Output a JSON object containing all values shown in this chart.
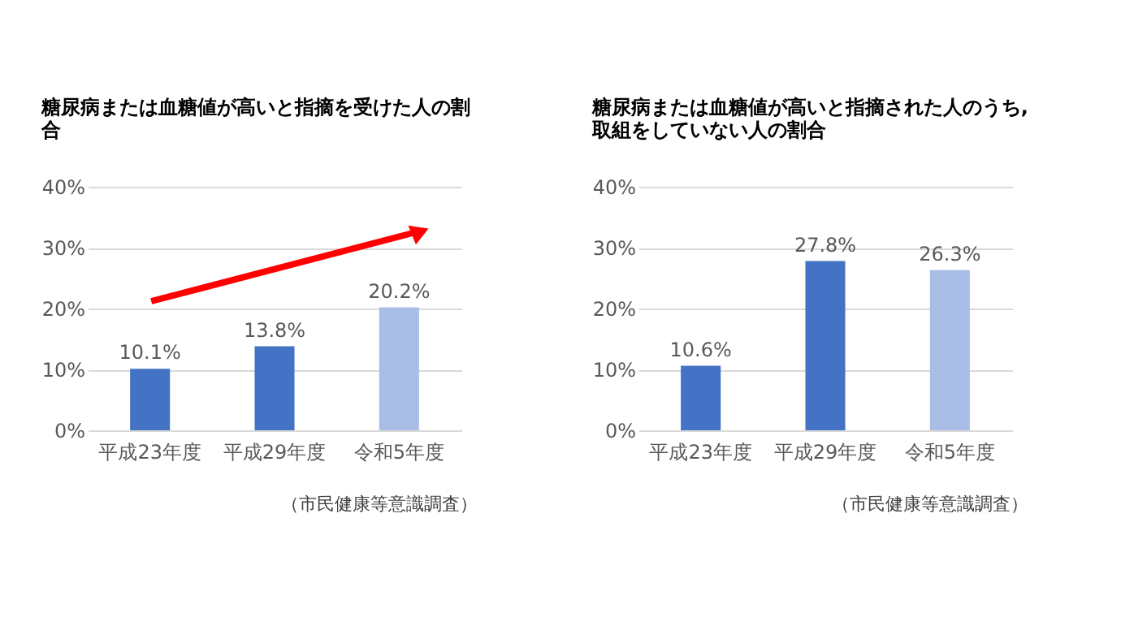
{
  "chart_data": [
    {
      "type": "bar",
      "title": "糖尿病または血糖値が高いと指摘を受けた人の割合",
      "categories": [
        "平成23年度",
        "平成29年度",
        "令和5年度"
      ],
      "values": [
        10.1,
        13.8,
        20.2
      ],
      "colors": [
        "#4472c4",
        "#4472c4",
        "#a9bde6"
      ],
      "value_labels": [
        "10.1%",
        "13.8%",
        "20.2%"
      ],
      "ylim": [
        0,
        40
      ],
      "yticks": [
        {
          "value": 0,
          "label": "0%"
        },
        {
          "value": 10,
          "label": "10%"
        },
        {
          "value": 20,
          "label": "20%"
        },
        {
          "value": 30,
          "label": "30%"
        },
        {
          "value": 40,
          "label": "40%"
        }
      ],
      "grid": "y",
      "annotations": [
        "（市民健康等意識調査）"
      ]
    },
    {
      "type": "bar",
      "title": "糖尿病または血糖値が高いと指摘された人のうち,取組をしていない人の割合",
      "categories": [
        "平成23年度",
        "平成29年度",
        "令和5年度"
      ],
      "values": [
        10.6,
        27.8,
        26.3
      ],
      "colors": [
        "#4472c4",
        "#4472c4",
        "#a9bde6"
      ],
      "value_labels": [
        "10.6%",
        "27.8%",
        "26.3%"
      ],
      "ylim": [
        0,
        40
      ],
      "yticks": [
        {
          "value": 0,
          "label": "0%"
        },
        {
          "value": 10,
          "label": "10%"
        },
        {
          "value": 20,
          "label": "20%"
        },
        {
          "value": 30,
          "label": "30%"
        },
        {
          "value": 40,
          "label": "40%"
        }
      ],
      "grid": "y",
      "annotations": [
        "（市民健康等意識調査）"
      ]
    }
  ]
}
